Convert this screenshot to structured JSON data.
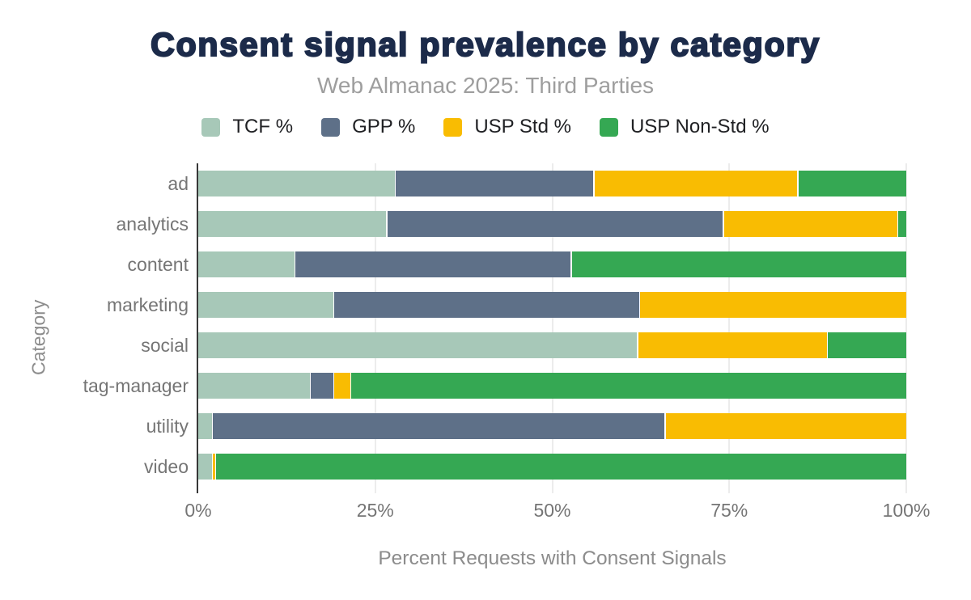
{
  "title": "Consent signal prevalence by category",
  "subtitle": "Web Almanac 2025: Third Parties",
  "colors": {
    "title": "#1c2b4a",
    "subtitle": "#9e9e9e",
    "axis_line": "#373737",
    "gridline": "#ececec",
    "tcf": "#a7c8b8",
    "gpp": "#5e7088",
    "usp_std": "#f9bc02",
    "usp_nonstd": "#35a853"
  },
  "chart_data": {
    "type": "bar",
    "orientation": "horizontal",
    "stacked": true,
    "title": "Consent signal prevalence by category",
    "subtitle": "Web Almanac 2025: Third Parties",
    "xlabel": "Percent Requests with Consent Signals",
    "ylabel": "Category",
    "xlim": [
      0,
      100
    ],
    "x_ticks": [
      "0%",
      "25%",
      "50%",
      "75%",
      "100%"
    ],
    "x_tick_values": [
      0,
      25,
      50,
      75,
      100
    ],
    "grid": true,
    "legend_position": "top",
    "categories": [
      "ad",
      "analytics",
      "content",
      "marketing",
      "social",
      "tag-manager",
      "utility",
      "video"
    ],
    "series": [
      {
        "name": "TCF %",
        "color": "#a7c8b8",
        "values": [
          27.9,
          26.7,
          13.6,
          19.1,
          62.2,
          15.8,
          1.9,
          1.9
        ]
      },
      {
        "name": "GPP %",
        "color": "#5e7088",
        "values": [
          28.0,
          47.6,
          39.0,
          43.2,
          0,
          3.2,
          64.0,
          0
        ]
      },
      {
        "name": "USP Std %",
        "color": "#f9bc02",
        "values": [
          28.8,
          24.6,
          0,
          37.7,
          26.7,
          2.2,
          34.1,
          0.3
        ]
      },
      {
        "name": "USP Non-Std %",
        "color": "#35a853",
        "values": [
          15.3,
          1.1,
          47.4,
          0,
          11.1,
          78.8,
          0,
          97.8
        ]
      }
    ]
  }
}
